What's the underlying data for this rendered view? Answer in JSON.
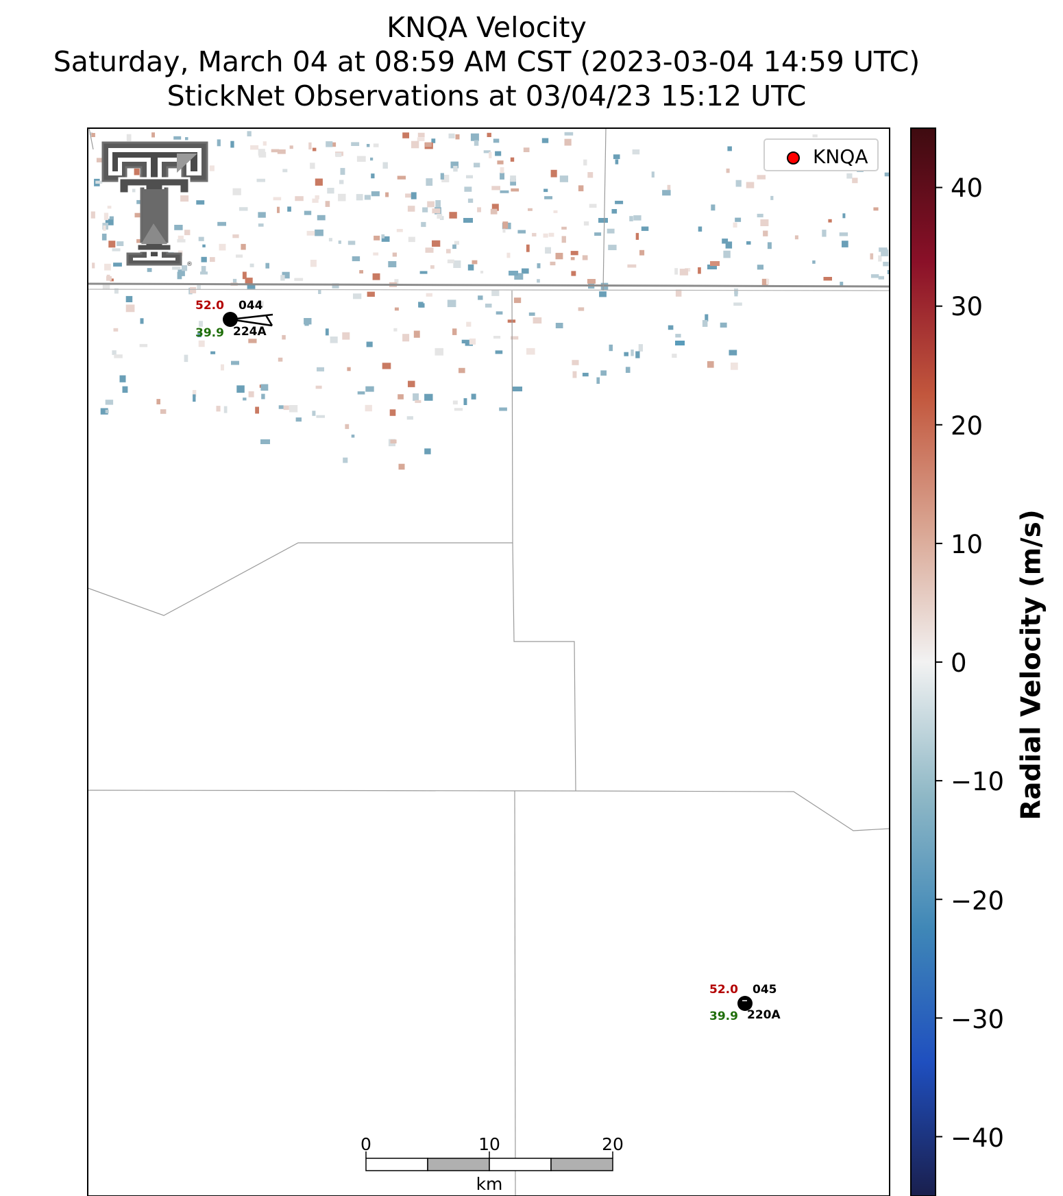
{
  "title": {
    "line1": "KNQA Velocity",
    "line2": "Saturday, March 04 at 08:59 AM CST (2023-03-04 14:59 UTC)",
    "line3": "StickNet Observations at 03/04/23 15:12 UTC"
  },
  "legend": {
    "label": "KNQA",
    "marker_color": "#ff0000"
  },
  "colorbar": {
    "label": "Radial Velocity (m/s)",
    "ticks": [
      "40",
      "30",
      "20",
      "10",
      "0",
      "−10",
      "−20",
      "−30",
      "−40"
    ],
    "range": [
      -45,
      45
    ],
    "colors": [
      "#1a1f4d",
      "#1f4fbf",
      "#3f87b7",
      "#8fb8c6",
      "#f2f2f2",
      "#d9a592",
      "#c2573d",
      "#8a1028",
      "#3e0b10"
    ]
  },
  "scale_bar": {
    "labels": [
      "0",
      "10",
      "20"
    ],
    "unit": "km"
  },
  "stations": [
    {
      "id": "044",
      "temp": "52.0",
      "dew": "39.9",
      "code": "224A"
    },
    {
      "id": "045",
      "temp": "52.0",
      "dew": "39.9",
      "code": "220A"
    }
  ]
}
